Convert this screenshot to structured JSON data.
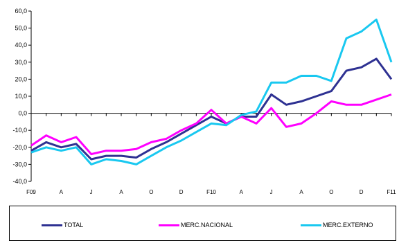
{
  "chart_data": {
    "type": "line",
    "title": "",
    "xlabel": "",
    "ylabel": "",
    "ylim": [
      -40,
      60
    ],
    "yticks": [
      "60,0",
      "50,0",
      "40,0",
      "30,0",
      "20,0",
      "10,0",
      "0,0",
      "-10,0",
      "-20,0",
      "-30,0",
      "-40,0"
    ],
    "xtick_labels": [
      "F09",
      "A",
      "J",
      "A",
      "O",
      "D",
      "F10",
      "A",
      "J",
      "A",
      "O",
      "D",
      "F11"
    ],
    "grid": false,
    "legend_position": "bottom",
    "series": [
      {
        "name": "TOTAL",
        "color": "#2e3192",
        "values": [
          -22,
          -17,
          -20,
          -18,
          -27,
          -25,
          -25,
          -26,
          -21,
          -17,
          -12,
          -7,
          -2,
          -6,
          -2,
          -2,
          11,
          5,
          7,
          10,
          13,
          25,
          27,
          32,
          20
        ]
      },
      {
        "name": "MERC.NACIONAL",
        "color": "#ff00ff",
        "values": [
          -19,
          -13,
          -17,
          -14,
          -24,
          -22,
          -22,
          -21,
          -17,
          -15,
          -10,
          -6,
          2,
          -6,
          -2,
          -6,
          3,
          -8,
          -6,
          0,
          7,
          5,
          5,
          8,
          11
        ]
      },
      {
        "name": "MERC.EXTERNO",
        "color": "#19c8f0",
        "values": [
          -23,
          -20,
          -22,
          -20,
          -30,
          -27,
          -28,
          -30,
          -25,
          -20,
          -16,
          -11,
          -6,
          -7,
          -1,
          1,
          18,
          18,
          22,
          22,
          19,
          44,
          48,
          55,
          30
        ]
      }
    ]
  }
}
